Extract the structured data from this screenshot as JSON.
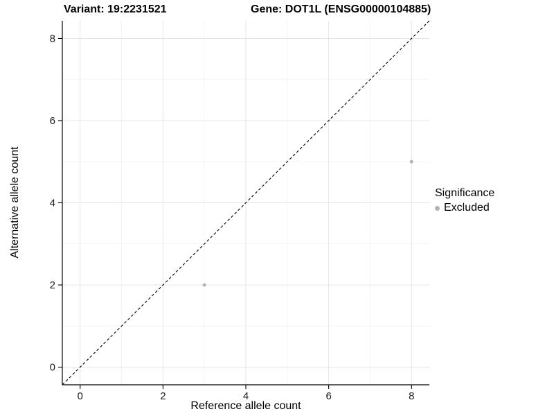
{
  "chart_data": {
    "type": "scatter",
    "title_left": "Variant: 19:2231521",
    "title_right": "Gene: DOT1L (ENSG00000104885)",
    "xlabel": "Reference allele count",
    "ylabel": "Alternative allele count",
    "xlim": [
      -0.43,
      8.43
    ],
    "ylim": [
      -0.43,
      8.43
    ],
    "x_ticks": [
      0,
      2,
      4,
      6,
      8
    ],
    "y_ticks": [
      0,
      2,
      4,
      6,
      8
    ],
    "minor_ticks": [
      1,
      3,
      5,
      7
    ],
    "grid": true,
    "points": [
      {
        "x": 3,
        "y": 2,
        "significance": "Excluded"
      },
      {
        "x": 8,
        "y": 5,
        "significance": "Excluded"
      }
    ],
    "identity_line": {
      "style": "dashed",
      "from": [
        -0.43,
        -0.43
      ],
      "to": [
        8.43,
        8.43
      ]
    },
    "point_color": "#b3b3b3",
    "legend": {
      "title": "Significance",
      "position": "right",
      "items": [
        {
          "label": "Excluded",
          "color": "#b3b3b3"
        }
      ]
    }
  },
  "colors": {
    "grid_major": "#e4e4e4",
    "grid_minor": "#f1f1f1",
    "axis": "#000000",
    "tick_label": "#1a1a1a",
    "background": "#ffffff"
  }
}
